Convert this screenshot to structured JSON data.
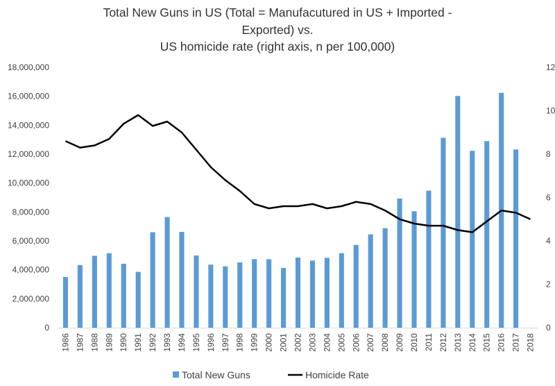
{
  "chart_data": {
    "type": "bar",
    "title_lines": [
      "Total New Guns in US (Total = Manufacutured in US + Imported -",
      "Exported) vs.",
      "US homicide rate (right axis, n per 100,000)"
    ],
    "categories": [
      "1986",
      "1987",
      "1988",
      "1989",
      "1990",
      "1991",
      "1992",
      "1993",
      "1994",
      "1995",
      "1996",
      "1997",
      "1998",
      "1999",
      "2000",
      "2001",
      "2002",
      "2003",
      "2004",
      "2005",
      "2006",
      "2007",
      "2008",
      "2009",
      "2010",
      "2011",
      "2012",
      "2013",
      "2014",
      "2015",
      "2016",
      "2017",
      "2018"
    ],
    "series": [
      {
        "name": "Total New Guns",
        "type": "bar",
        "axis": "left",
        "color": "#5b9bd5",
        "values": [
          3500000,
          4330000,
          4970000,
          5150000,
          4420000,
          3860000,
          6600000,
          7650000,
          6620000,
          4990000,
          4360000,
          4240000,
          4510000,
          4740000,
          4730000,
          4130000,
          4850000,
          4640000,
          4830000,
          5150000,
          5720000,
          6450000,
          6880000,
          8930000,
          8050000,
          9470000,
          13130000,
          16020000,
          12230000,
          12900000,
          16240000,
          12320000,
          null
        ]
      },
      {
        "name": "Homicide Rate",
        "type": "line",
        "axis": "right",
        "color": "#000000",
        "values": [
          8.6,
          8.3,
          8.4,
          8.7,
          9.4,
          9.8,
          9.3,
          9.5,
          9.0,
          8.2,
          7.4,
          6.8,
          6.3,
          5.7,
          5.5,
          5.6,
          5.6,
          5.7,
          5.5,
          5.6,
          5.8,
          5.7,
          5.4,
          5.0,
          4.8,
          4.7,
          4.7,
          4.5,
          4.4,
          4.9,
          5.4,
          5.3,
          5.0
        ]
      }
    ],
    "y_left": {
      "ylim": [
        0,
        18000000
      ],
      "ticks": [
        "0",
        "2,000,000",
        "4,000,000",
        "6,000,000",
        "8,000,000",
        "10,000,000",
        "12,000,000",
        "14,000,000",
        "16,000,000",
        "18,000,000"
      ]
    },
    "y_right": {
      "ylim": [
        0,
        12
      ],
      "ticks": [
        "0",
        "2",
        "4",
        "6",
        "8",
        "10",
        "12"
      ]
    },
    "grid": false,
    "legend": {
      "position": "bottom",
      "entries": [
        "Total New Guns",
        "Homicide Rate"
      ]
    }
  }
}
